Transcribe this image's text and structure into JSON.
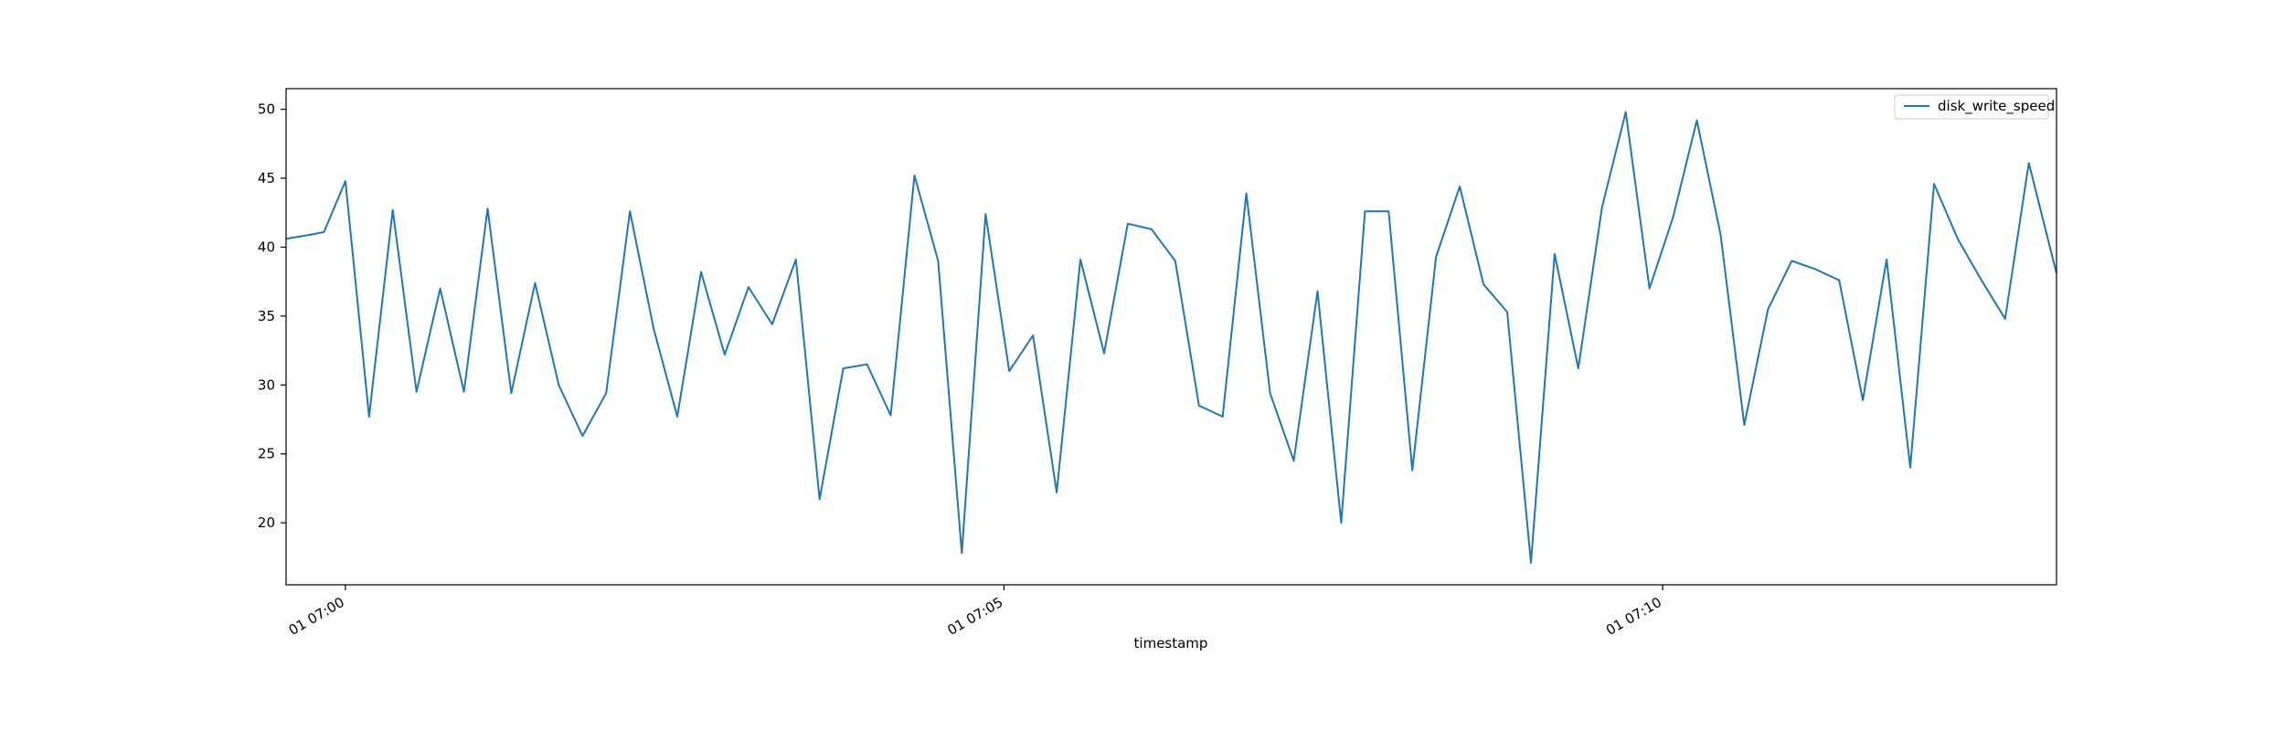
{
  "chart_data": {
    "type": "line",
    "title": "",
    "xlabel": "timestamp",
    "ylabel": "",
    "x_tick_labels": [
      "01 07:00",
      "01 07:05",
      "01 07:10"
    ],
    "x_tick_minutes": [
      0,
      5,
      10
    ],
    "y_ticks": [
      20,
      25,
      30,
      35,
      40,
      45,
      50
    ],
    "ylim": [
      15.5,
      51.5
    ],
    "grid": false,
    "legend_position": "top-right",
    "colors": {
      "line": "#1f77b4",
      "axes": "#000000"
    },
    "series": [
      {
        "name": "disk_write_speed",
        "x_minutes": [
          -0.45,
          -0.267,
          -0.162,
          0.0,
          0.18,
          0.36,
          0.54,
          0.72,
          0.9,
          1.08,
          1.26,
          1.44,
          1.62,
          1.8,
          1.98,
          2.16,
          2.34,
          2.52,
          2.7,
          2.88,
          3.06,
          3.24,
          3.42,
          3.6,
          3.78,
          3.96,
          4.14,
          4.32,
          4.5,
          4.68,
          4.86,
          5.04,
          5.22,
          5.4,
          5.58,
          5.76,
          5.94,
          6.12,
          6.3,
          6.48,
          6.66,
          6.84,
          7.02,
          7.2,
          7.38,
          7.56,
          7.74,
          7.92,
          8.1,
          8.28,
          8.46,
          8.64,
          8.82,
          9.0,
          9.18,
          9.36,
          9.54,
          9.72,
          9.9,
          10.08,
          10.26,
          10.44,
          10.62,
          10.8,
          10.98,
          11.16,
          11.34,
          11.52,
          11.7,
          11.88,
          12.06,
          12.24,
          12.42,
          12.6,
          12.78,
          12.99
        ],
        "values": [
          40.6,
          40.9,
          41.1,
          44.8,
          27.7,
          42.7,
          29.5,
          37.0,
          29.5,
          42.8,
          29.4,
          37.4,
          30.0,
          26.3,
          29.4,
          42.6,
          34.1,
          27.7,
          38.2,
          32.2,
          37.1,
          34.4,
          39.1,
          21.7,
          31.2,
          31.5,
          27.8,
          45.2,
          39.0,
          17.8,
          42.4,
          31.0,
          33.6,
          22.2,
          39.1,
          32.3,
          41.7,
          41.3,
          39.0,
          28.5,
          27.7,
          43.9,
          29.4,
          24.5,
          36.8,
          20.0,
          42.6,
          42.6,
          23.8,
          39.3,
          44.4,
          37.3,
          35.3,
          17.1,
          39.5,
          31.2,
          42.9,
          49.8,
          37.0,
          42.2,
          49.2,
          40.9,
          27.1,
          35.5,
          39.0,
          38.4,
          37.6,
          28.9,
          39.1,
          24.0,
          44.6,
          40.6,
          37.6,
          34.8,
          46.1,
          38.1
        ]
      }
    ]
  }
}
